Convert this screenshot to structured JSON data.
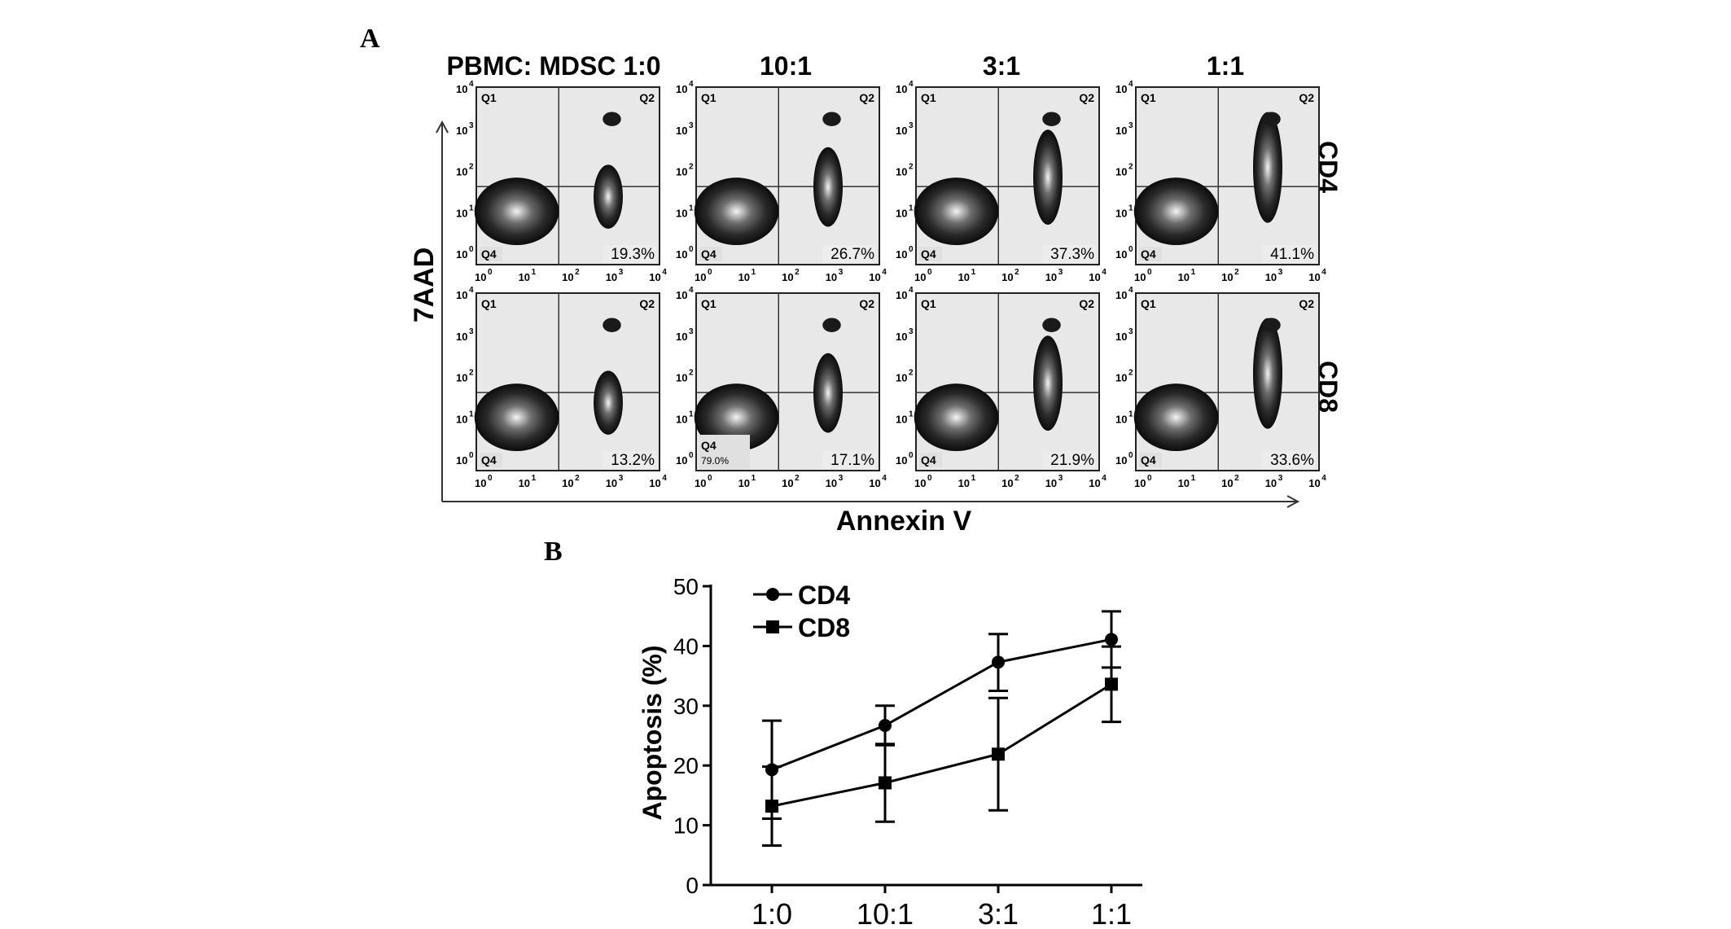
{
  "panel_a": {
    "letter": "A",
    "column_headers": [
      "PBMC: MDSC 1:0",
      "10:1",
      "3:1",
      "1:1"
    ],
    "row_labels": [
      "CD4",
      "CD8"
    ],
    "y_axis_label": "7AAD",
    "x_axis_label": "Annexin V",
    "quadrant_labels": {
      "q1": "Q1",
      "q2": "Q2",
      "q4": "Q4"
    },
    "ticks": [
      "0",
      "1",
      "2",
      "3",
      "4"
    ],
    "tick_base": "10",
    "rows": [
      {
        "label": "CD4",
        "percents": [
          "19.3%",
          "26.7%",
          "37.3%",
          "41.1%"
        ],
        "q4_values": [
          "",
          "",
          "",
          ""
        ]
      },
      {
        "label": "CD8",
        "percents": [
          "13.2%",
          "17.1%",
          "21.9%",
          "33.6%"
        ],
        "q4_values": [
          "",
          "79.0%",
          "",
          ""
        ]
      }
    ]
  },
  "chart_data": {
    "panel_letter": "B",
    "type": "line",
    "categories": [
      "1:0",
      "10:1",
      "3:1",
      "1:1"
    ],
    "series": [
      {
        "name": "CD4",
        "marker": "circle",
        "values": [
          19.3,
          26.7,
          37.3,
          41.1
        ],
        "error_lower": [
          11.1,
          23.4,
          32.5,
          36.4
        ],
        "error_upper": [
          27.5,
          30.0,
          42.0,
          45.8
        ]
      },
      {
        "name": "CD8",
        "marker": "square",
        "values": [
          13.2,
          17.1,
          21.9,
          33.6
        ],
        "error_lower": [
          6.6,
          10.6,
          12.5,
          27.3
        ],
        "error_upper": [
          19.8,
          23.6,
          31.3,
          39.9
        ]
      }
    ],
    "xlabel": "",
    "ylabel": "Apoptosis (%)",
    "ylim": [
      0,
      50
    ],
    "yticks": [
      0,
      10,
      20,
      30,
      40,
      50
    ],
    "legend_position": "top-left",
    "grid": false
  }
}
